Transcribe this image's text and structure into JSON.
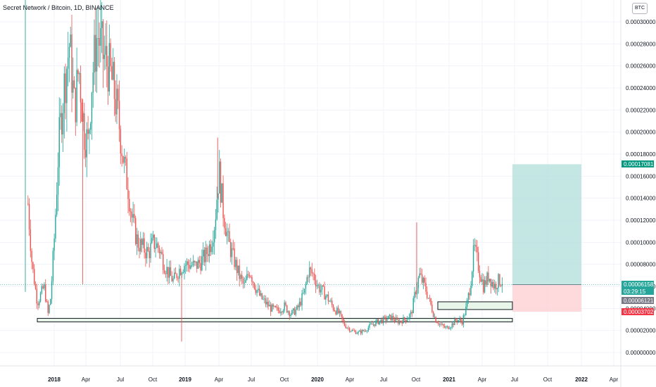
{
  "chart_data": {
    "type": "candlestick",
    "title": "Secret Network / Bitcoin, 1D, BINANCE",
    "currency_button": "BTC",
    "y_ticks": [
      "0.00030000",
      "0.00028000",
      "0.00026000",
      "0.00024000",
      "0.00022000",
      "0.00020000",
      "0.00018000",
      "0.00016000",
      "0.00014000",
      "0.00012000",
      "0.00010000",
      "0.00008000",
      "0.00006000",
      "0.00004000",
      "0.00002000",
      "0.00000000"
    ],
    "ylim": [
      0,
      0.00031
    ],
    "x_ticks": [
      {
        "label": "2018",
        "year": true
      },
      {
        "label": "Apr",
        "year": false
      },
      {
        "label": "Jul",
        "year": false
      },
      {
        "label": "Oct",
        "year": false
      },
      {
        "label": "2019",
        "year": true
      },
      {
        "label": "Apr",
        "year": false
      },
      {
        "label": "Jul",
        "year": false
      },
      {
        "label": "Oct",
        "year": false
      },
      {
        "label": "2020",
        "year": true
      },
      {
        "label": "Apr",
        "year": false
      },
      {
        "label": "Jul",
        "year": false
      },
      {
        "label": "Oct",
        "year": false
      },
      {
        "label": "2021",
        "year": true
      },
      {
        "label": "Apr",
        "year": false
      },
      {
        "label": "Jul",
        "year": false
      },
      {
        "label": "Oct",
        "year": false
      },
      {
        "label": "2022",
        "year": true
      },
      {
        "label": "Apr",
        "year": false
      }
    ],
    "price_path": [
      [
        2017.83,
        0.000135
      ],
      [
        2017.86,
        8e-05
      ],
      [
        2017.9,
        4.5e-05
      ],
      [
        2017.95,
        6e-05
      ],
      [
        2017.98,
        3.5e-05
      ],
      [
        2018.0,
        5e-05
      ],
      [
        2018.03,
        0.00011
      ],
      [
        2018.06,
        0.00019
      ],
      [
        2018.1,
        0.00024
      ],
      [
        2018.14,
        0.00028
      ],
      [
        2018.18,
        0.00022
      ],
      [
        2018.21,
        0.00026
      ],
      [
        2018.25,
        0.0002
      ],
      [
        2018.28,
        0.00019
      ],
      [
        2018.31,
        0.00025
      ],
      [
        2018.35,
        0.00029
      ],
      [
        2018.39,
        0.00027
      ],
      [
        2018.43,
        0.00026
      ],
      [
        2018.47,
        0.00024
      ],
      [
        2018.51,
        0.00021
      ],
      [
        2018.55,
        0.00017
      ],
      [
        2018.58,
        0.00015
      ],
      [
        2018.61,
        0.00012
      ],
      [
        2018.65,
        0.0001
      ],
      [
        2018.69,
        9.5e-05
      ],
      [
        2018.73,
        9e-05
      ],
      [
        2018.77,
        0.0001
      ],
      [
        2018.81,
        9.5e-05
      ],
      [
        2018.85,
        8e-05
      ],
      [
        2018.89,
        7e-05
      ],
      [
        2018.92,
        6.5e-05
      ],
      [
        2018.96,
        7.5e-05
      ],
      [
        2019.0,
        8e-05
      ],
      [
        2019.04,
        8e-05
      ],
      [
        2019.08,
        7.8e-05
      ],
      [
        2019.12,
        8.2e-05
      ],
      [
        2019.16,
        8.8e-05
      ],
      [
        2019.2,
        0.0001
      ],
      [
        2019.23,
        0.00012
      ],
      [
        2019.26,
        0.000165
      ],
      [
        2019.29,
        0.00013
      ],
      [
        2019.33,
        0.0001
      ],
      [
        2019.37,
        8.5e-05
      ],
      [
        2019.41,
        7e-05
      ],
      [
        2019.45,
        6e-05
      ],
      [
        2019.49,
        7.5e-05
      ],
      [
        2019.53,
        6e-05
      ],
      [
        2019.57,
        5e-05
      ],
      [
        2019.61,
        4.5e-05
      ],
      [
        2019.65,
        4e-05
      ],
      [
        2019.7,
        3.8e-05
      ],
      [
        2019.75,
        4.2e-05
      ],
      [
        2019.8,
        3.5e-05
      ],
      [
        2019.85,
        4e-05
      ],
      [
        2019.9,
        5.5e-05
      ],
      [
        2019.93,
        7.5e-05
      ],
      [
        2019.97,
        7e-05
      ],
      [
        2020.0,
        6e-05
      ],
      [
        2020.04,
        5.5e-05
      ],
      [
        2020.08,
        4.8e-05
      ],
      [
        2020.12,
        4e-05
      ],
      [
        2020.16,
        3.5e-05
      ],
      [
        2020.2,
        2.5e-05
      ],
      [
        2020.25,
        2e-05
      ],
      [
        2020.3,
        1.8e-05
      ],
      [
        2020.35,
        2e-05
      ],
      [
        2020.4,
        2.5e-05
      ],
      [
        2020.45,
        2.8e-05
      ],
      [
        2020.5,
        3e-05
      ],
      [
        2020.55,
        3.2e-05
      ],
      [
        2020.6,
        2.8e-05
      ],
      [
        2020.65,
        3e-05
      ],
      [
        2020.7,
        3.5e-05
      ],
      [
        2020.73,
        5.5e-05
      ],
      [
        2020.76,
        7e-05
      ],
      [
        2020.8,
        6e-05
      ],
      [
        2020.84,
        4.5e-05
      ],
      [
        2020.88,
        3e-05
      ],
      [
        2020.92,
        2.5e-05
      ],
      [
        2020.96,
        2.2e-05
      ],
      [
        2021.0,
        2.5e-05
      ],
      [
        2021.04,
        3e-05
      ],
      [
        2021.08,
        2.8e-05
      ],
      [
        2021.11,
        4e-05
      ],
      [
        2021.14,
        6e-05
      ],
      [
        2021.17,
        9.5e-05
      ],
      [
        2021.2,
        8e-05
      ],
      [
        2021.24,
        6e-05
      ],
      [
        2021.28,
        7e-05
      ],
      [
        2021.32,
        6e-05
      ],
      [
        2021.35,
        6.5e-05
      ],
      [
        2021.38,
        6.5e-05
      ]
    ],
    "spikes": [
      {
        "x": 2017.81,
        "low": 5.5e-05,
        "high": 0.00032,
        "color": "teal"
      },
      {
        "x": 2018.24,
        "low": 6.2e-05,
        "high": 0.00023,
        "color": "red"
      },
      {
        "x": 2018.98,
        "low": 1e-05,
        "high": 7e-05,
        "color": "red"
      },
      {
        "x": 2019.25,
        "low": 0.00014,
        "high": 0.000195,
        "color": "red"
      },
      {
        "x": 2020.74,
        "low": 5.5e-05,
        "high": 0.000118,
        "color": "red"
      }
    ],
    "support_zones": [
      {
        "x0": 2017.92,
        "x1": 2021.51,
        "y_low": 2.8e-05,
        "y_high": 3.1e-05
      },
      {
        "x0": 2020.9,
        "x1": 2021.51,
        "y_low": 3.9e-05,
        "y_high": 4.6e-05
      }
    ],
    "position": {
      "x0": 2021.51,
      "x1": 2022.0,
      "entry": 6.158e-05,
      "target": 0.00017081,
      "stop": 3.702e-05
    },
    "price_badges": [
      {
        "label": "0.00017081",
        "value": 0.00017081,
        "color": "#089981",
        "sub": ""
      },
      {
        "label": "0.00006158",
        "value": 6.158e-05,
        "color": "#26a69a",
        "sub": "03:29:15"
      },
      {
        "label": "0.00006121",
        "value": 6.121e-05,
        "color": "#787b86",
        "sub": ""
      },
      {
        "label": "0.00003702",
        "value": 3.702e-05,
        "color": "#f23645",
        "sub": ""
      }
    ],
    "colors": {
      "up": "#26a69a",
      "down": "#ef5350",
      "grid": "#f0f3fa",
      "zone_fill": "#e8f5e9",
      "target_fill": "#b2dfdb",
      "stop_fill": "#ffcdd2"
    }
  }
}
